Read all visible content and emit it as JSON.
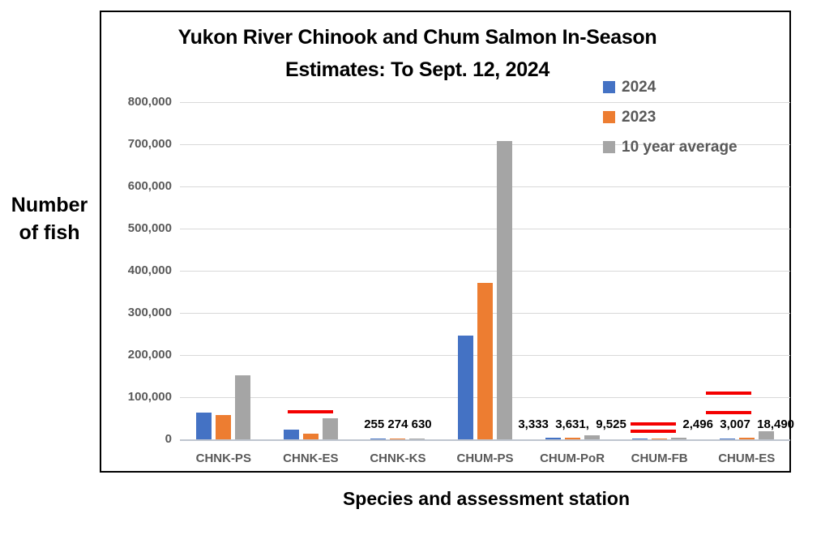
{
  "title": {
    "line1": "Yukon River Chinook and Chum Salmon In-Season",
    "line2": "Estimates: To Sept. 12, 2024"
  },
  "y_axis": {
    "title_line1": "Number",
    "title_line2": "of fish"
  },
  "x_axis": {
    "title": "Species and assessment station"
  },
  "legend": {
    "items": [
      {
        "label": "2024",
        "color": "#4472C4"
      },
      {
        "label": "2023",
        "color": "#ED7D31"
      },
      {
        "label": "10 year average",
        "color": "#A5A5A5"
      }
    ]
  },
  "chart_data": {
    "type": "bar",
    "title": "Yukon River Chinook and Chum Salmon In-Season Estimates: To Sept. 12, 2024",
    "xlabel": "Species and assessment station",
    "ylabel": "Number of fish",
    "ylim": [
      0,
      800000
    ],
    "grid": true,
    "legend_position": "top-right",
    "categories": [
      "CHNK-PS",
      "CHNK-ES",
      "CHNK-KS",
      "CHUM-PS",
      "CHUM-PoR",
      "CHUM-FB",
      "CHUM-ES"
    ],
    "series": [
      {
        "name": "2024",
        "color": "#4472C4",
        "values": [
          63000,
          24000,
          255,
          246000,
          3333,
          1500,
          2496
        ]
      },
      {
        "name": "2023",
        "color": "#ED7D31",
        "values": [
          58000,
          14000,
          274,
          371000,
          3631,
          1800,
          3007
        ]
      },
      {
        "name": "10 year average",
        "color": "#A5A5A5",
        "values": [
          152000,
          50000,
          630,
          707000,
          9525,
          3000,
          18490
        ]
      }
    ],
    "y_ticks": [
      {
        "value": 0,
        "label": "0"
      },
      {
        "value": 100000,
        "label": "100,000"
      },
      {
        "value": 200000,
        "label": "200,000"
      },
      {
        "value": 300000,
        "label": "300,000"
      },
      {
        "value": 400000,
        "label": "400,000"
      },
      {
        "value": 500000,
        "label": "500,000"
      },
      {
        "value": 600000,
        "label": "600,000"
      },
      {
        "value": 700000,
        "label": "700,000"
      },
      {
        "value": 800000,
        "label": "800,000"
      }
    ],
    "data_labels": [
      {
        "category": "CHNK-KS",
        "text": "255 274 630",
        "dx": 0
      },
      {
        "category": "CHUM-PoR",
        "text": "3,333  3,631,  9,525",
        "dx": 0
      },
      {
        "category": "CHUM-ES",
        "text": "2,496  3,007  18,490",
        "dx": -10
      }
    ],
    "reference_lines": [
      {
        "category": "CHNK-ES",
        "value": 66000,
        "dx": 0
      },
      {
        "category": "CHUM-FB",
        "value": 37000,
        "dx": -8
      },
      {
        "category": "CHUM-FB",
        "value": 19000,
        "dx": -8
      },
      {
        "category": "CHUM-ES",
        "value": 109000,
        "dx": -22
      },
      {
        "category": "CHUM-ES",
        "value": 64000,
        "dx": -22
      }
    ]
  }
}
